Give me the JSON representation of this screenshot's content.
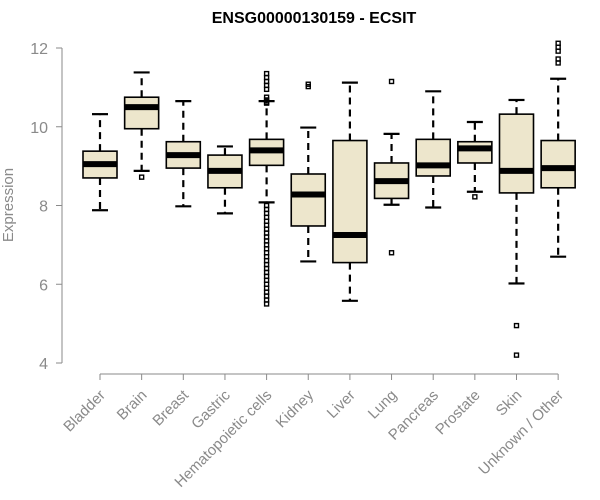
{
  "chart_data": {
    "type": "boxplot",
    "title": "ENSG00000130159 - ECSIT",
    "ylabel": "Expression",
    "xlabel": "",
    "ylim": [
      4,
      12
    ],
    "yticks": [
      4,
      6,
      8,
      10,
      12
    ],
    "box_color": "#ede6cc",
    "categories": [
      "Bladder",
      "Brain",
      "Breast",
      "Gastric",
      "Hematopoietic cells",
      "Kidney",
      "Liver",
      "Lung",
      "Pancreas",
      "Prostate",
      "Skin",
      "Unknown / Other"
    ],
    "boxes": [
      {
        "name": "Bladder",
        "whisker_low": 7.88,
        "q1": 8.7,
        "median": 9.05,
        "q3": 9.38,
        "whisker_high": 10.32,
        "outliers": []
      },
      {
        "name": "Brain",
        "whisker_low": 8.88,
        "q1": 9.95,
        "median": 10.5,
        "q3": 10.75,
        "whisker_high": 11.38,
        "outliers": [
          8.72
        ]
      },
      {
        "name": "Breast",
        "whisker_low": 7.98,
        "q1": 8.95,
        "median": 9.28,
        "q3": 9.62,
        "whisker_high": 10.65,
        "outliers": []
      },
      {
        "name": "Gastric",
        "whisker_low": 7.8,
        "q1": 8.45,
        "median": 8.88,
        "q3": 9.28,
        "whisker_high": 9.5,
        "outliers": []
      },
      {
        "name": "Hematopoietic cells",
        "whisker_low": 8.08,
        "q1": 9.02,
        "median": 9.4,
        "q3": 9.68,
        "whisker_high": 10.65,
        "outliers": [
          10.6,
          10.62,
          10.68,
          10.75,
          10.95,
          11.05,
          11.15,
          11.25,
          11.35,
          8.0,
          7.9,
          7.8,
          7.7,
          7.6,
          7.5,
          7.4,
          7.3,
          7.2,
          7.1,
          7.0,
          6.9,
          6.8,
          6.7,
          6.6,
          6.5,
          6.4,
          6.3,
          6.2,
          6.1,
          6.0,
          5.9,
          5.8,
          5.7,
          5.6,
          5.5
        ]
      },
      {
        "name": "Kidney",
        "whisker_low": 6.58,
        "q1": 7.48,
        "median": 8.28,
        "q3": 8.8,
        "whisker_high": 9.98,
        "outliers": [
          11.02,
          11.08
        ]
      },
      {
        "name": "Liver",
        "whisker_low": 5.58,
        "q1": 6.55,
        "median": 7.25,
        "q3": 9.65,
        "whisker_high": 11.12,
        "outliers": []
      },
      {
        "name": "Lung",
        "whisker_low": 8.02,
        "q1": 8.18,
        "median": 8.62,
        "q3": 9.08,
        "whisker_high": 9.82,
        "outliers": [
          11.15,
          6.8
        ]
      },
      {
        "name": "Pancreas",
        "whisker_low": 7.95,
        "q1": 8.75,
        "median": 9.02,
        "q3": 9.68,
        "whisker_high": 10.9,
        "outliers": []
      },
      {
        "name": "Prostate",
        "whisker_low": 8.35,
        "q1": 9.08,
        "median": 9.45,
        "q3": 9.62,
        "whisker_high": 10.12,
        "outliers": [
          8.22
        ]
      },
      {
        "name": "Skin",
        "whisker_low": 6.02,
        "q1": 8.32,
        "median": 8.88,
        "q3": 10.32,
        "whisker_high": 10.68,
        "outliers": [
          4.95,
          4.2
        ]
      },
      {
        "name": "Unknown / Other",
        "whisker_low": 6.7,
        "q1": 8.45,
        "median": 8.95,
        "q3": 9.65,
        "whisker_high": 11.22,
        "outliers": [
          11.62,
          11.72,
          11.92,
          12.02,
          12.12
        ]
      }
    ]
  }
}
